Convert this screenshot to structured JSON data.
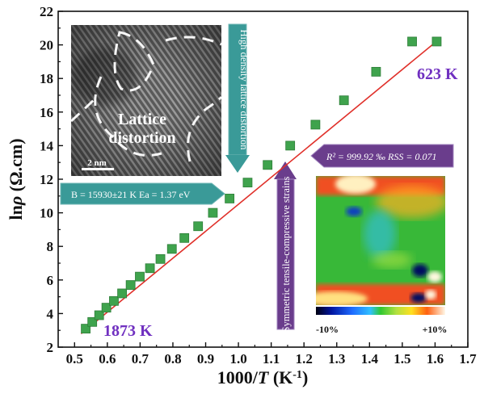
{
  "chart_data": {
    "type": "scatter",
    "xlabel": "1000/T (K⁻¹)",
    "ylabel": "lnρ (Ω.cm)",
    "xlim": [
      0.45,
      1.7
    ],
    "ylim": [
      2,
      22
    ],
    "x_ticks": [
      "0.5",
      "0.6",
      "0.7",
      "0.8",
      "0.9",
      "1.0",
      "1.1",
      "1.2",
      "1.3",
      "1.4",
      "1.5",
      "1.6",
      "1.7"
    ],
    "y_ticks": [
      "2",
      "4",
      "6",
      "8",
      "10",
      "12",
      "14",
      "16",
      "18",
      "20",
      "22"
    ],
    "series": [
      {
        "marker": "square",
        "color": "#3fa34d",
        "x": [
          0.534,
          0.554,
          0.575,
          0.597,
          0.62,
          0.645,
          0.671,
          0.699,
          0.73,
          0.762,
          0.797,
          0.835,
          0.877,
          0.922,
          0.973,
          1.028,
          1.089,
          1.158,
          1.235,
          1.322,
          1.42,
          1.53,
          1.605
        ],
        "y": [
          3.1,
          3.5,
          3.9,
          4.35,
          4.75,
          5.2,
          5.7,
          6.2,
          6.7,
          7.25,
          7.85,
          8.5,
          9.2,
          10.0,
          10.85,
          11.8,
          12.85,
          14.0,
          15.25,
          16.7,
          18.4,
          20.2,
          20.2
        ]
      }
    ],
    "fit_line": {
      "color": "#e0302a",
      "x": [
        0.52,
        1.61
      ],
      "y": [
        2.8,
        20.3
      ]
    },
    "annotations": {
      "t_low": "1873 K",
      "t_high": "623 K",
      "fit_params": "B = 15930±21 K  Ea = 1.37 eV",
      "fit_quality": "R² = 999.92 ‰  RSS = 0.071",
      "hd_distortion": "High density lattice distortion",
      "strain_label": "Symmetric tensile-compressive strains",
      "inset_label_1": "Lattice",
      "inset_label_2": "distortion",
      "scale_bar": "2 nm",
      "colorbar_min": "-10%",
      "colorbar_max": "+10%"
    },
    "grid": false,
    "legend": "none"
  }
}
